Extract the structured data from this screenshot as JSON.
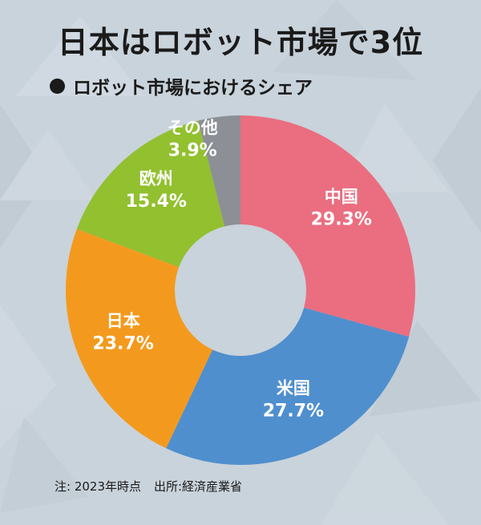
{
  "header": {
    "title": "日本はロボット市場で3位",
    "subtitle": "ロボット市場におけるシェア"
  },
  "chart_data": {
    "type": "pie",
    "variant": "donut",
    "title": "日本はロボット市場で3位",
    "subtitle": "ロボット市場におけるシェア",
    "unit": "%",
    "slices": [
      {
        "label": "中国",
        "value": 29.3,
        "value_label": "29.3%",
        "color": "#ea6e80"
      },
      {
        "label": "米国",
        "value": 27.7,
        "value_label": "27.7%",
        "color": "#4f8fce"
      },
      {
        "label": "日本",
        "value": 23.7,
        "value_label": "23.7%",
        "color": "#f39a1e"
      },
      {
        "label": "欧州",
        "value": 15.4,
        "value_label": "15.4%",
        "color": "#92c02f"
      },
      {
        "label": "その他",
        "value": 3.9,
        "value_label": "3.9%",
        "color": "#8c9096"
      }
    ],
    "start": "top",
    "direction": "clockwise",
    "label_color": "#ffffff",
    "background": "#c9d3db"
  },
  "footer": {
    "note": "注: 2023年時点",
    "source": "出所:経済産業省"
  }
}
